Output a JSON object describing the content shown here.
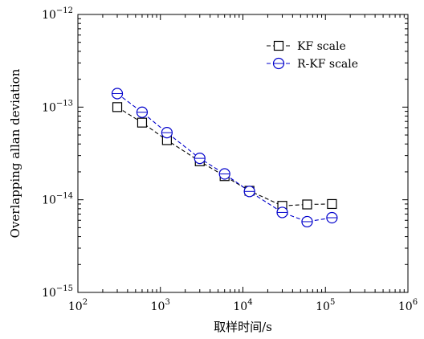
{
  "chart_data": {
    "type": "line",
    "xscale": "log",
    "yscale": "log",
    "xlim": [
      100,
      1000000
    ],
    "ylim": [
      1e-15,
      1e-12
    ],
    "xlabel": "取样时间/s",
    "ylabel": "Overlapping allan deviation",
    "x_tick_labels": [
      {
        "base": "10",
        "exp": "2"
      },
      {
        "base": "10",
        "exp": "3"
      },
      {
        "base": "10",
        "exp": "4"
      },
      {
        "base": "10",
        "exp": "5"
      },
      {
        "base": "10",
        "exp": "6"
      }
    ],
    "y_tick_labels": [
      {
        "base": "10",
        "exp": "−15"
      },
      {
        "base": "10",
        "exp": "−14"
      },
      {
        "base": "10",
        "exp": "−13"
      },
      {
        "base": "10",
        "exp": "−12"
      }
    ],
    "legend_position": "top-right",
    "series": [
      {
        "name": "KF scale",
        "color": "#000000",
        "marker": "square",
        "x": [
          300,
          600,
          1200,
          3000,
          6000,
          12000,
          30000,
          60000,
          120000
        ],
        "y": [
          1e-13,
          6.8e-14,
          4.4e-14,
          2.6e-14,
          1.8e-14,
          1.25e-14,
          8.6e-15,
          8.9e-15,
          9e-15
        ]
      },
      {
        "name": "R-KF scale",
        "color": "#0000cc",
        "marker": "circle",
        "x": [
          300,
          600,
          1200,
          3000,
          6000,
          12000,
          30000,
          60000,
          120000
        ],
        "y": [
          1.4e-13,
          8.8e-14,
          5.3e-14,
          2.8e-14,
          1.9e-14,
          1.23e-14,
          7.3e-15,
          5.8e-15,
          6.4e-15
        ]
      }
    ]
  }
}
